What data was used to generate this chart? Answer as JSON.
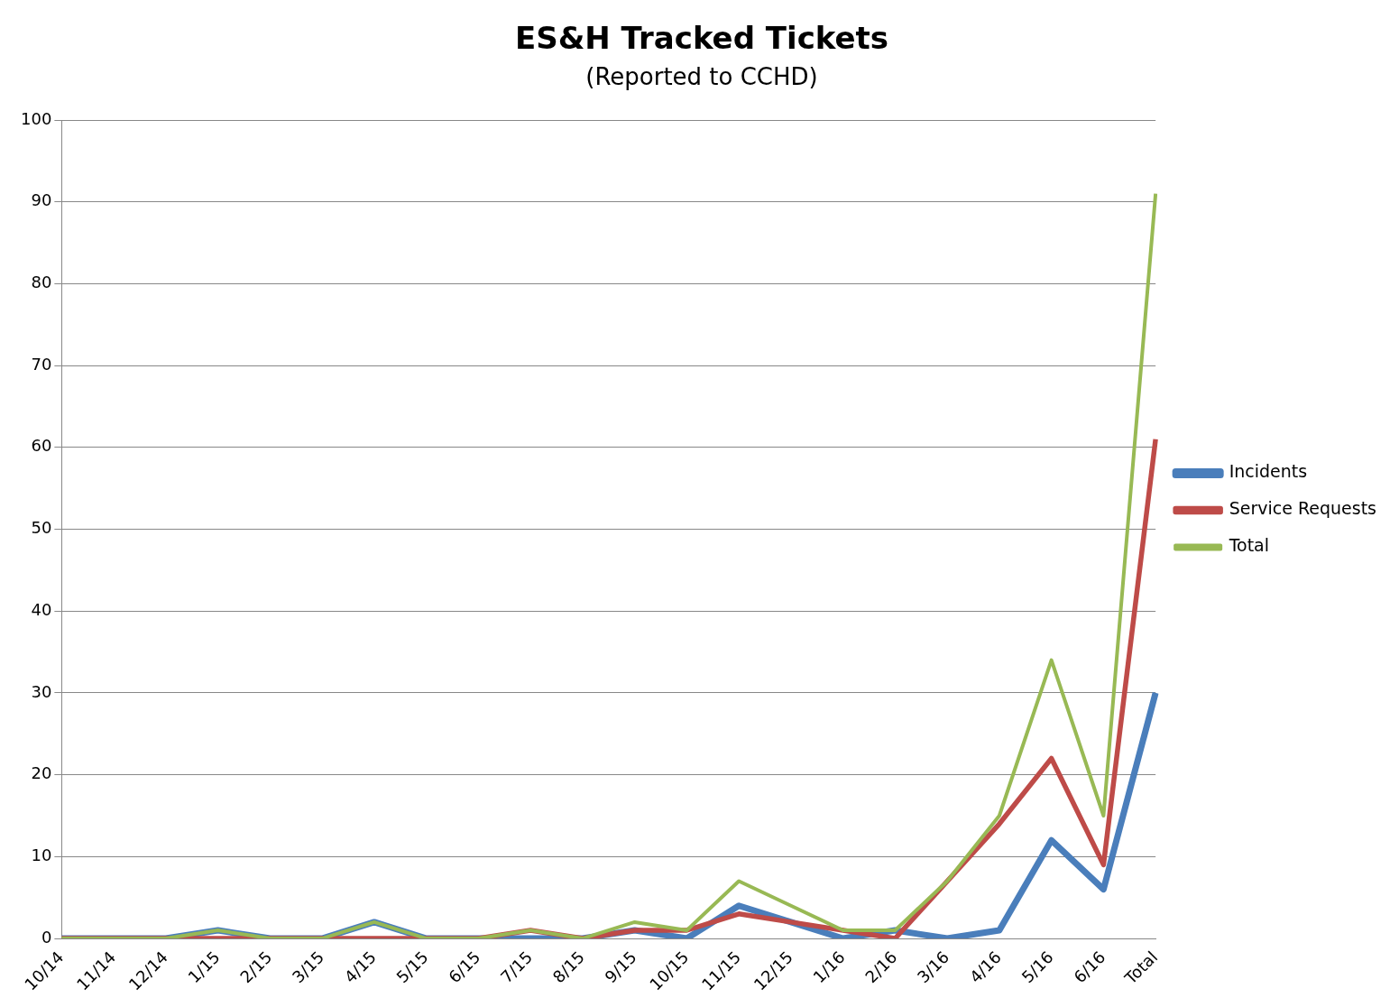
{
  "chart_data": {
    "type": "line",
    "title": "ES&H Tracked Tickets",
    "subtitle": "(Reported to CCHD)",
    "categories": [
      "10/14",
      "11/14",
      "12/14",
      "1/15",
      "2/15",
      "3/15",
      "4/15",
      "5/15",
      "6/15",
      "7/15",
      "8/15",
      "9/15",
      "10/15",
      "11/15",
      "12/15",
      "1/16",
      "2/16",
      "3/16",
      "4/16",
      "5/16",
      "6/16",
      "Total"
    ],
    "series": [
      {
        "name": "Incidents",
        "color": "#4a7ebb",
        "values": [
          0,
          0,
          0,
          1,
          0,
          0,
          2,
          0,
          0,
          0,
          0,
          1,
          0,
          4,
          2,
          0,
          1,
          0,
          1,
          12,
          6,
          30
        ]
      },
      {
        "name": "Service Requests",
        "color": "#be4b48",
        "values": [
          0,
          0,
          0,
          0,
          0,
          0,
          0,
          0,
          0,
          1,
          0,
          1,
          1,
          3,
          2,
          1,
          0,
          7,
          14,
          22,
          9,
          61
        ]
      },
      {
        "name": "Total",
        "color": "#98b954",
        "values": [
          0,
          0,
          0,
          1,
          0,
          0,
          2,
          0,
          0,
          1,
          0,
          2,
          1,
          7,
          4,
          1,
          1,
          7,
          15,
          34,
          15,
          91
        ]
      }
    ],
    "ylim": [
      0,
      100
    ],
    "yticks": [
      0,
      10,
      20,
      30,
      40,
      50,
      60,
      70,
      80,
      90,
      100
    ],
    "grid": "y",
    "legend": "right",
    "marker": "none",
    "line_style": "solid"
  }
}
